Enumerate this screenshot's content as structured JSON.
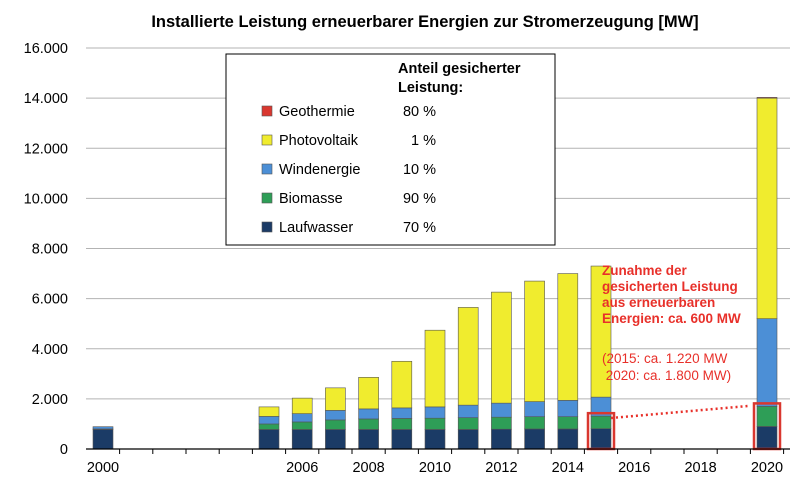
{
  "chart_data": {
    "type": "bar",
    "stacked": true,
    "title": "Installierte Leistung erneuerbarer Energien zur Stromerzeugung [MW]",
    "xlabel": "",
    "ylabel": "",
    "ylim": [
      0,
      16000
    ],
    "xlim": [
      2000,
      2020
    ],
    "y_ticks": [
      "0",
      "2.000",
      "4.000",
      "6.000",
      "8.000",
      "10.000",
      "12.000",
      "14.000",
      "16.000"
    ],
    "x_ticks": [
      "2000",
      "2006",
      "2008",
      "2010",
      "2012",
      "2014",
      "2016",
      "2018",
      "2020"
    ],
    "grid": true,
    "years": [
      2000,
      2005,
      2006,
      2007,
      2008,
      2009,
      2010,
      2011,
      2012,
      2013,
      2014,
      2015,
      2020
    ],
    "series": [
      {
        "name": "Laufwasser",
        "color": "#1b3b66",
        "values": [
          780,
          780,
          780,
          780,
          780,
          780,
          780,
          780,
          790,
          800,
          800,
          810,
          900
        ]
      },
      {
        "name": "Biomasse",
        "color": "#2e9e57",
        "values": [
          20,
          220,
          300,
          380,
          420,
          440,
          450,
          470,
          480,
          490,
          490,
          500,
          800
        ]
      },
      {
        "name": "Windenergie",
        "color": "#4c8fd6",
        "values": [
          90,
          300,
          330,
          380,
          400,
          420,
          450,
          500,
          560,
          600,
          650,
          760,
          3500
        ]
      },
      {
        "name": "Photovoltaik",
        "color": "#f0ec2e",
        "values": [
          0,
          380,
          620,
          900,
          1260,
          1860,
          3060,
          3900,
          4430,
          4810,
          5060,
          5230,
          8800
        ]
      },
      {
        "name": "Geothermie",
        "color": "#d9372f",
        "values": [
          0,
          0,
          0,
          0,
          0,
          0,
          0,
          0,
          0,
          0,
          0,
          0,
          30
        ]
      }
    ],
    "legend": {
      "placement": "top-center",
      "header": [
        "Anteil gesicherter",
        "Leistung:"
      ],
      "entries": [
        {
          "name": "Geothermie",
          "share": "80 %",
          "color": "#d9372f"
        },
        {
          "name": "Photovoltaik",
          "share": "1 %",
          "color": "#f0ec2e"
        },
        {
          "name": "Windenergie",
          "share": "10 %",
          "color": "#4c8fd6"
        },
        {
          "name": "Biomasse",
          "share": "90 %",
          "color": "#2e9e57"
        },
        {
          "name": "Laufwasser",
          "share": "70 %",
          "color": "#1b3b66"
        }
      ]
    },
    "highlighted_years": [
      2015,
      2020
    ],
    "annotation": {
      "lines_bold": [
        "Zunahme der",
        "gesicherten Leistung",
        "aus erneuerbaren",
        "Energien: ca. 600 MW"
      ],
      "lines_plain": [
        "(2015: ca. 1.220 MW",
        " 2020: ca. 1.800 MW)"
      ],
      "color": "#e8302a"
    }
  }
}
